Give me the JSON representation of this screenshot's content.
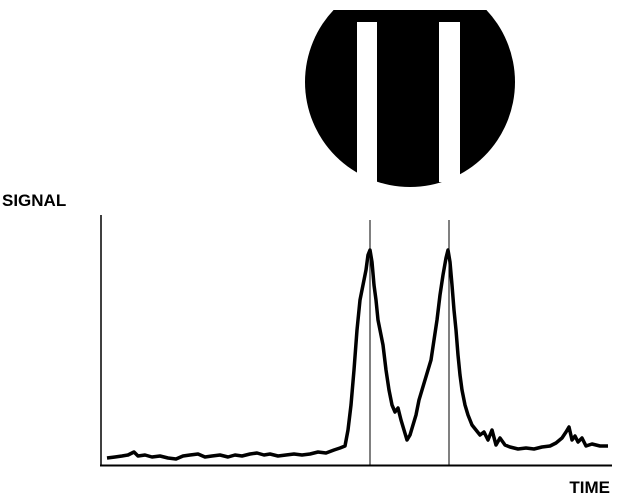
{
  "axis_labels": {
    "y": "SIGNAL",
    "x": "TIME"
  }
}
